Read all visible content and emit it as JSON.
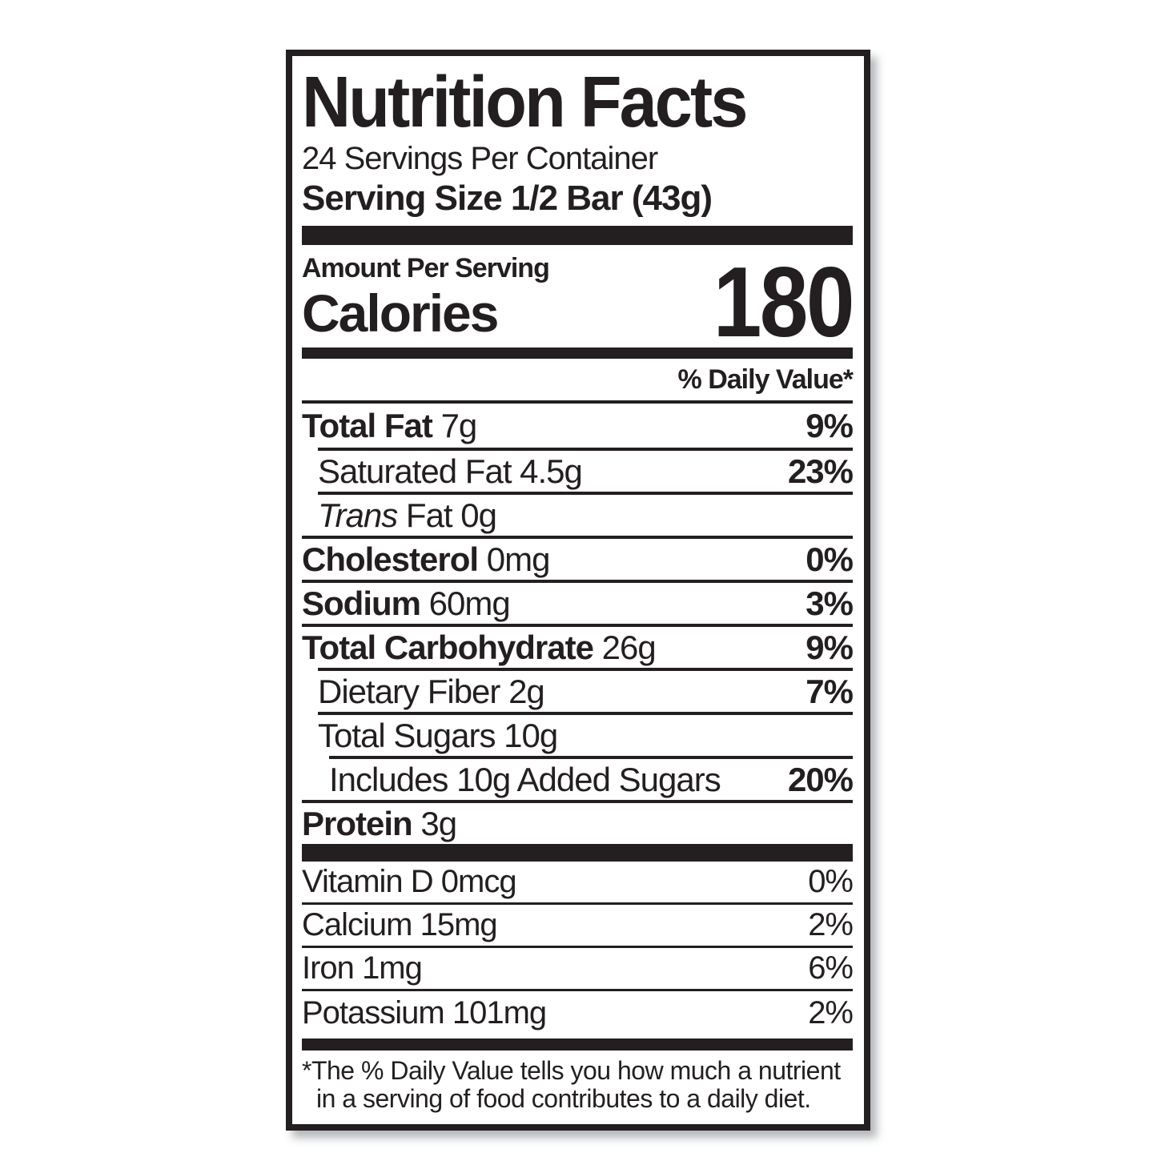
{
  "label": {
    "title": "Nutrition Facts",
    "servings_per_container": "24 Servings Per Container",
    "serving_size": "Serving Size 1/2 Bar (43g)",
    "amount_per_serving": "Amount Per Serving",
    "calories_label": "Calories",
    "calories_value": "180",
    "daily_value_header": "% Daily Value*",
    "nutrients": [
      {
        "name": "Total Fat",
        "amount": "7g",
        "dv": "9%"
      },
      {
        "name": "Saturated Fat",
        "amount": "4.5g",
        "dv": "23%"
      },
      {
        "name": "Trans",
        "amount": "Fat 0g",
        "dv": ""
      },
      {
        "name": "Cholesterol",
        "amount": "0mg",
        "dv": "0%"
      },
      {
        "name": "Sodium",
        "amount": "60mg",
        "dv": "3%"
      },
      {
        "name": "Total Carbohydrate",
        "amount": "26g",
        "dv": "9%"
      },
      {
        "name": "Dietary Fiber",
        "amount": "2g",
        "dv": "7%"
      },
      {
        "name": "Total Sugars",
        "amount": "10g",
        "dv": ""
      },
      {
        "name": "Includes 10g Added Sugars",
        "amount": "",
        "dv": "20%"
      },
      {
        "name": "Protein",
        "amount": "3g",
        "dv": ""
      }
    ],
    "micronutrients": [
      {
        "name": "Vitamin D",
        "amount": "0mcg",
        "dv": "0%"
      },
      {
        "name": "Calcium",
        "amount": "15mg",
        "dv": "2%"
      },
      {
        "name": "Iron",
        "amount": "1mg",
        "dv": "6%"
      },
      {
        "name": "Potassium",
        "amount": "101mg",
        "dv": "2%"
      }
    ],
    "footnote_line1": "*The % Daily Value tells you how much a nutrient",
    "footnote_line2": "in a serving of food contributes to a daily diet.",
    "colors": {
      "ink": "#231f20",
      "background": "#ffffff"
    }
  }
}
